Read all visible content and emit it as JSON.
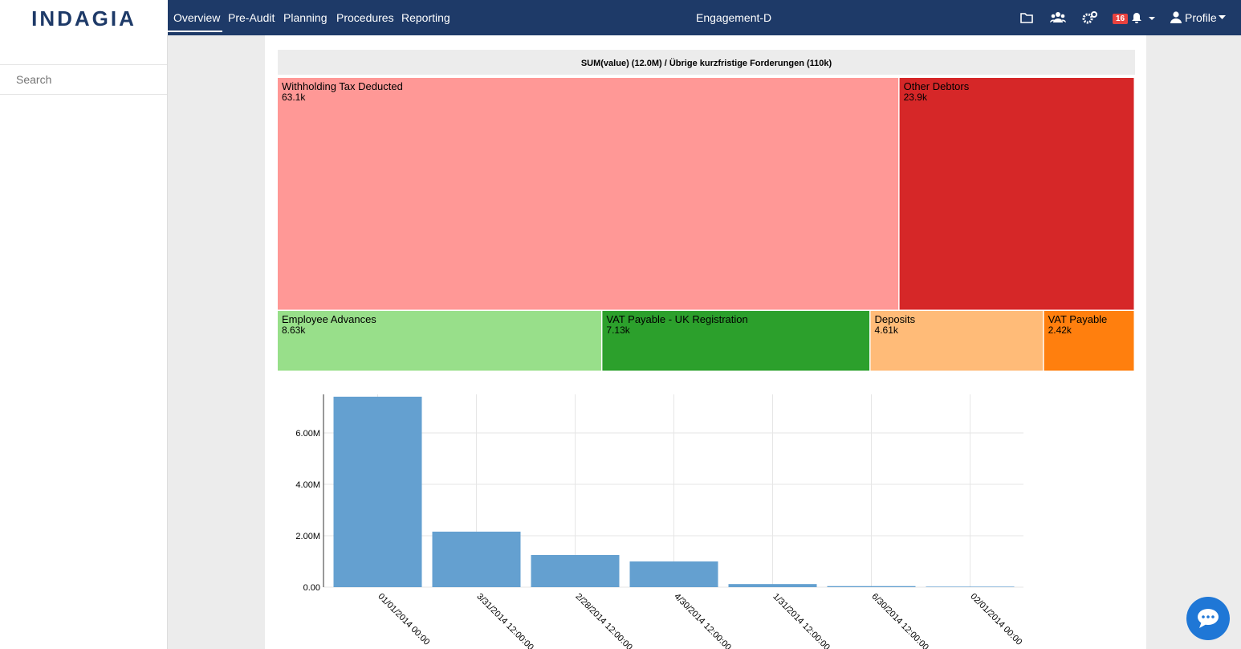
{
  "header": {
    "logo": "INDAGIA",
    "menu": [
      "Overview",
      "Pre-Audit",
      "Planning",
      "Procedures",
      "Reporting"
    ],
    "engagement": "Engagement-D",
    "notification_count": "16",
    "profile": "Profile"
  },
  "sidebar": {
    "search_placeholder": "Search"
  },
  "treemap": {
    "title": "SUM(value) (12.0M) / Übrige kurzfristige Forderungen (110k)",
    "items": [
      {
        "name": "Withholding Tax Deducted",
        "value": 63100,
        "value_label": "63.1k",
        "color": "#ff9896"
      },
      {
        "name": "Other Debtors",
        "value": 23900,
        "value_label": "23.9k",
        "color": "#d62728"
      },
      {
        "name": "Employee Advances",
        "value": 8630,
        "value_label": "8.63k",
        "color": "#98df8a"
      },
      {
        "name": "VAT Payable - UK Registration",
        "value": 7130,
        "value_label": "7.13k",
        "color": "#2ca02c"
      },
      {
        "name": "Deposits",
        "value": 4610,
        "value_label": "4.61k",
        "color": "#ffbb78"
      },
      {
        "name": "VAT Payable",
        "value": 2420,
        "value_label": "2.42k",
        "color": "#ff7f0e"
      }
    ]
  },
  "chart_data": {
    "type": "bar",
    "categories": [
      "01/01/2014 00:00",
      "3/31/2014 12:00:00",
      "2/28/2014 12:00:00",
      "4/30/2014 12:00:00",
      "1/31/2014 12:00:00",
      "6/30/2014 12:00:00",
      "02/01/2014 00:00"
    ],
    "values": [
      7410000,
      2160000,
      1250000,
      1000000,
      120000,
      40000,
      20000
    ],
    "color": "#64a0d0",
    "ylim": [
      0,
      7500000
    ],
    "yticks": [
      {
        "value": 0,
        "label": "0.00"
      },
      {
        "value": 2000000,
        "label": "2.00M"
      },
      {
        "value": 4000000,
        "label": "4.00M"
      },
      {
        "value": 6000000,
        "label": "6.00M"
      }
    ],
    "grid": true
  }
}
